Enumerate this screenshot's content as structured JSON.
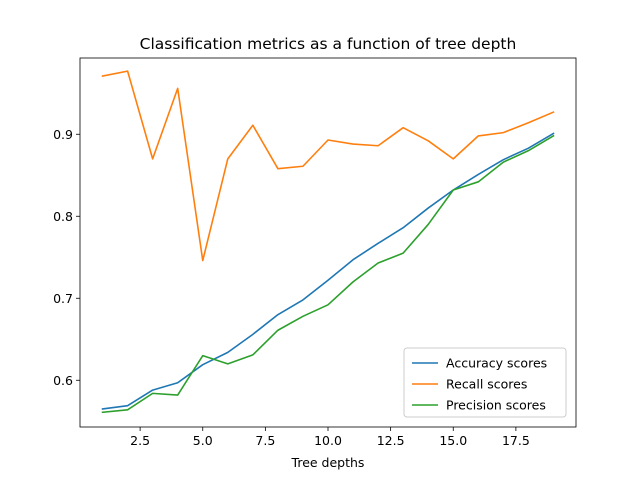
{
  "chart_data": {
    "type": "line",
    "title": "Classification metrics as a function of tree depth",
    "xlabel": "Tree depths",
    "ylabel": "",
    "xlim": [
      0.1,
      19.9
    ],
    "ylim": [
      0.543,
      0.993
    ],
    "x_ticks": [
      2.5,
      5.0,
      7.5,
      10.0,
      12.5,
      15.0,
      17.5
    ],
    "x_tick_labels": [
      "2.5",
      "5.0",
      "7.5",
      "10.0",
      "12.5",
      "15.0",
      "17.5"
    ],
    "y_ticks": [
      0.6,
      0.7,
      0.8,
      0.9
    ],
    "y_tick_labels": [
      "0.6",
      "0.7",
      "0.8",
      "0.9"
    ],
    "grid": false,
    "legend_position": "lower-right",
    "x": [
      1,
      2,
      3,
      4,
      5,
      6,
      7,
      8,
      9,
      10,
      11,
      12,
      13,
      14,
      15,
      16,
      17,
      18,
      19
    ],
    "series": [
      {
        "name": "Accuracy scores",
        "color": "#1f77b4",
        "values": [
          0.565,
          0.569,
          0.588,
          0.597,
          0.619,
          0.634,
          0.656,
          0.68,
          0.698,
          0.722,
          0.747,
          0.767,
          0.786,
          0.81,
          0.832,
          0.851,
          0.869,
          0.883,
          0.901
        ]
      },
      {
        "name": "Recall scores",
        "color": "#ff7f0e",
        "values": [
          0.971,
          0.977,
          0.87,
          0.956,
          0.746,
          0.87,
          0.911,
          0.858,
          0.861,
          0.893,
          0.888,
          0.886,
          0.908,
          0.892,
          0.87,
          0.898,
          0.902,
          0.914,
          0.927
        ]
      },
      {
        "name": "Precision scores",
        "color": "#2ca02c",
        "values": [
          0.561,
          0.564,
          0.584,
          0.582,
          0.63,
          0.62,
          0.631,
          0.661,
          0.678,
          0.692,
          0.72,
          0.743,
          0.755,
          0.79,
          0.832,
          0.842,
          0.866,
          0.88,
          0.898
        ]
      }
    ]
  }
}
